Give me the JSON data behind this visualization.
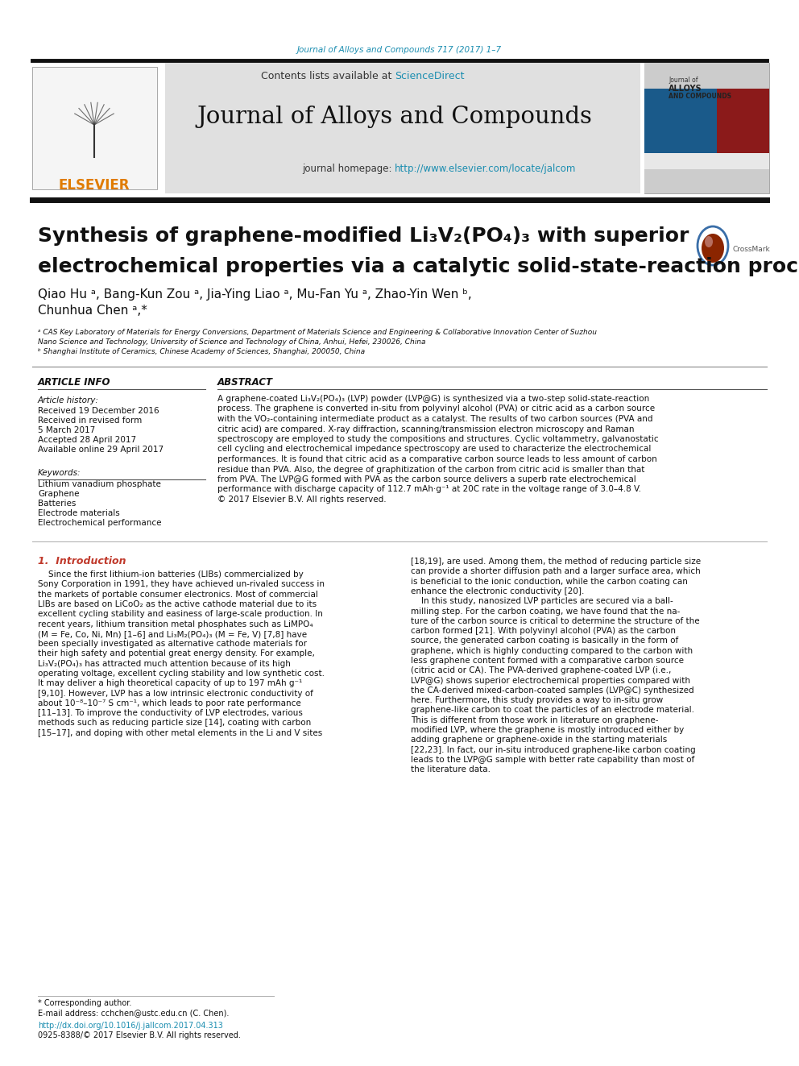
{
  "journal_cite": "Journal of Alloys and Compounds 717 (2017) 1–7",
  "journal_cite_color": "#1a8db0",
  "header_bg": "#e0e0e0",
  "contents_text": "Contents lists available at ",
  "sciencedirect_text": "ScienceDirect",
  "sciencedirect_color": "#1a8db0",
  "journal_title": "Journal of Alloys and Compounds",
  "homepage_label": "journal homepage: ",
  "homepage_url": "http://www.elsevier.com/locate/jalcom",
  "homepage_url_color": "#1a8db0",
  "divider_color": "#111111",
  "article_title_line1": "Synthesis of graphene-modified Li₃V₂(PO₄)₃ with superior",
  "article_title_line2": "electrochemical properties via a catalytic solid-state-reaction process",
  "authors_line1": "Qiao Hu ᵃ, Bang-Kun Zou ᵃ, Jia-Ying Liao ᵃ, Mu-Fan Yu ᵃ, Zhao-Yin Wen ᵇ,",
  "authors_line2": "Chunhua Chen ᵃ,*",
  "affiliation_a": "ᵃ CAS Key Laboratory of Materials for Energy Conversions, Department of Materials Science and Engineering & Collaborative Innovation Center of Suzhou",
  "affiliation_a2": "Nano Science and Technology, University of Science and Technology of China, Anhui, Hefei, 230026, China",
  "affiliation_b": "ᵇ Shanghai Institute of Ceramics, Chinese Academy of Sciences, Shanghai, 200050, China",
  "article_info_title": "ARTICLE INFO",
  "article_history_label": "Article history:",
  "received1": "Received 19 December 2016",
  "received2": "Received in revised form",
  "received2b": "5 March 2017",
  "accepted": "Accepted 28 April 2017",
  "available": "Available online 29 April 2017",
  "keywords_title": "Keywords:",
  "keyword1": "Lithium vanadium phosphate",
  "keyword2": "Graphene",
  "keyword3": "Batteries",
  "keyword4": "Electrode materials",
  "keyword5": "Electrochemical performance",
  "abstract_title": "ABSTRACT",
  "abstract_lines": [
    "A graphene-coated Li₃V₂(PO₄)₃ (LVP) powder (LVP@G) is synthesized via a two-step solid-state-reaction",
    "process. The graphene is converted in-situ from polyvinyl alcohol (PVA) or citric acid as a carbon source",
    "with the VO₂-containing intermediate product as a catalyst. The results of two carbon sources (PVA and",
    "citric acid) are compared. X-ray diffraction, scanning/transmission electron microscopy and Raman",
    "spectroscopy are employed to study the compositions and structures. Cyclic voltammetry, galvanostatic",
    "cell cycling and electrochemical impedance spectroscopy are used to characterize the electrochemical",
    "performances. It is found that citric acid as a comparative carbon source leads to less amount of carbon",
    "residue than PVA. Also, the degree of graphitization of the carbon from citric acid is smaller than that",
    "from PVA. The LVP@G formed with PVA as the carbon source delivers a superb rate electrochemical",
    "performance with discharge capacity of 112.7 mAh·g⁻¹ at 20C rate in the voltage range of 3.0–4.8 V.",
    "© 2017 Elsevier B.V. All rights reserved."
  ],
  "intro_title": "1.  Introduction",
  "intro_left_lines": [
    "    Since the first lithium-ion batteries (LIBs) commercialized by",
    "Sony Corporation in 1991, they have achieved un-rivaled success in",
    "the markets of portable consumer electronics. Most of commercial",
    "LIBs are based on LiCoO₂ as the active cathode material due to its",
    "excellent cycling stability and easiness of large-scale production. In",
    "recent years, lithium transition metal phosphates such as LiMPO₄",
    "(M = Fe, Co, Ni, Mn) [1–6] and Li₃M₂(PO₄)₃ (M = Fe, V) [7,8] have",
    "been specially investigated as alternative cathode materials for",
    "their high safety and potential great energy density. For example,",
    "Li₃V₂(PO₄)₃ has attracted much attention because of its high",
    "operating voltage, excellent cycling stability and low synthetic cost.",
    "It may deliver a high theoretical capacity of up to 197 mAh g⁻¹",
    "[9,10]. However, LVP has a low intrinsic electronic conductivity of",
    "about 10⁻⁸–10⁻⁷ S cm⁻¹, which leads to poor rate performance",
    "[11–13]. To improve the conductivity of LVP electrodes, various",
    "methods such as reducing particle size [14], coating with carbon",
    "[15–17], and doping with other metal elements in the Li and V sites"
  ],
  "intro_right_lines": [
    "[18,19], are used. Among them, the method of reducing particle size",
    "can provide a shorter diffusion path and a larger surface area, which",
    "is beneficial to the ionic conduction, while the carbon coating can",
    "enhance the electronic conductivity [20].",
    "    In this study, nanosized LVP particles are secured via a ball-",
    "milling step. For the carbon coating, we have found that the na-",
    "ture of the carbon source is critical to determine the structure of the",
    "carbon formed [21]. With polyvinyl alcohol (PVA) as the carbon",
    "source, the generated carbon coating is basically in the form of",
    "graphene, which is highly conducting compared to the carbon with",
    "less graphene content formed with a comparative carbon source",
    "(citric acid or CA). The PVA-derived graphene-coated LVP (i.e.,",
    "LVP@G) shows superior electrochemical properties compared with",
    "the CA-derived mixed-carbon-coated samples (LVP@C) synthesized",
    "here. Furthermore, this study provides a way to in-situ grow",
    "graphene-like carbon to coat the particles of an electrode material.",
    "This is different from those work in literature on graphene-",
    "modified LVP, where the graphene is mostly introduced either by",
    "adding graphene or graphene-oxide in the starting materials",
    "[22,23]. In fact, our in-situ introduced graphene-like carbon coating",
    "leads to the LVP@G sample with better rate capability than most of",
    "the literature data."
  ],
  "corresponding_note": "* Corresponding author.",
  "email_note": "E-mail address: cchchen@ustc.edu.cn (C. Chen).",
  "doi_text": "http://dx.doi.org/10.1016/j.jallcom.2017.04.313",
  "issn_text": "0925-8388/© 2017 Elsevier B.V. All rights reserved.",
  "intro_title_color": "#c0392b",
  "ref_color": "#1a8db0",
  "bg_color": "#ffffff",
  "text_color": "#000000"
}
